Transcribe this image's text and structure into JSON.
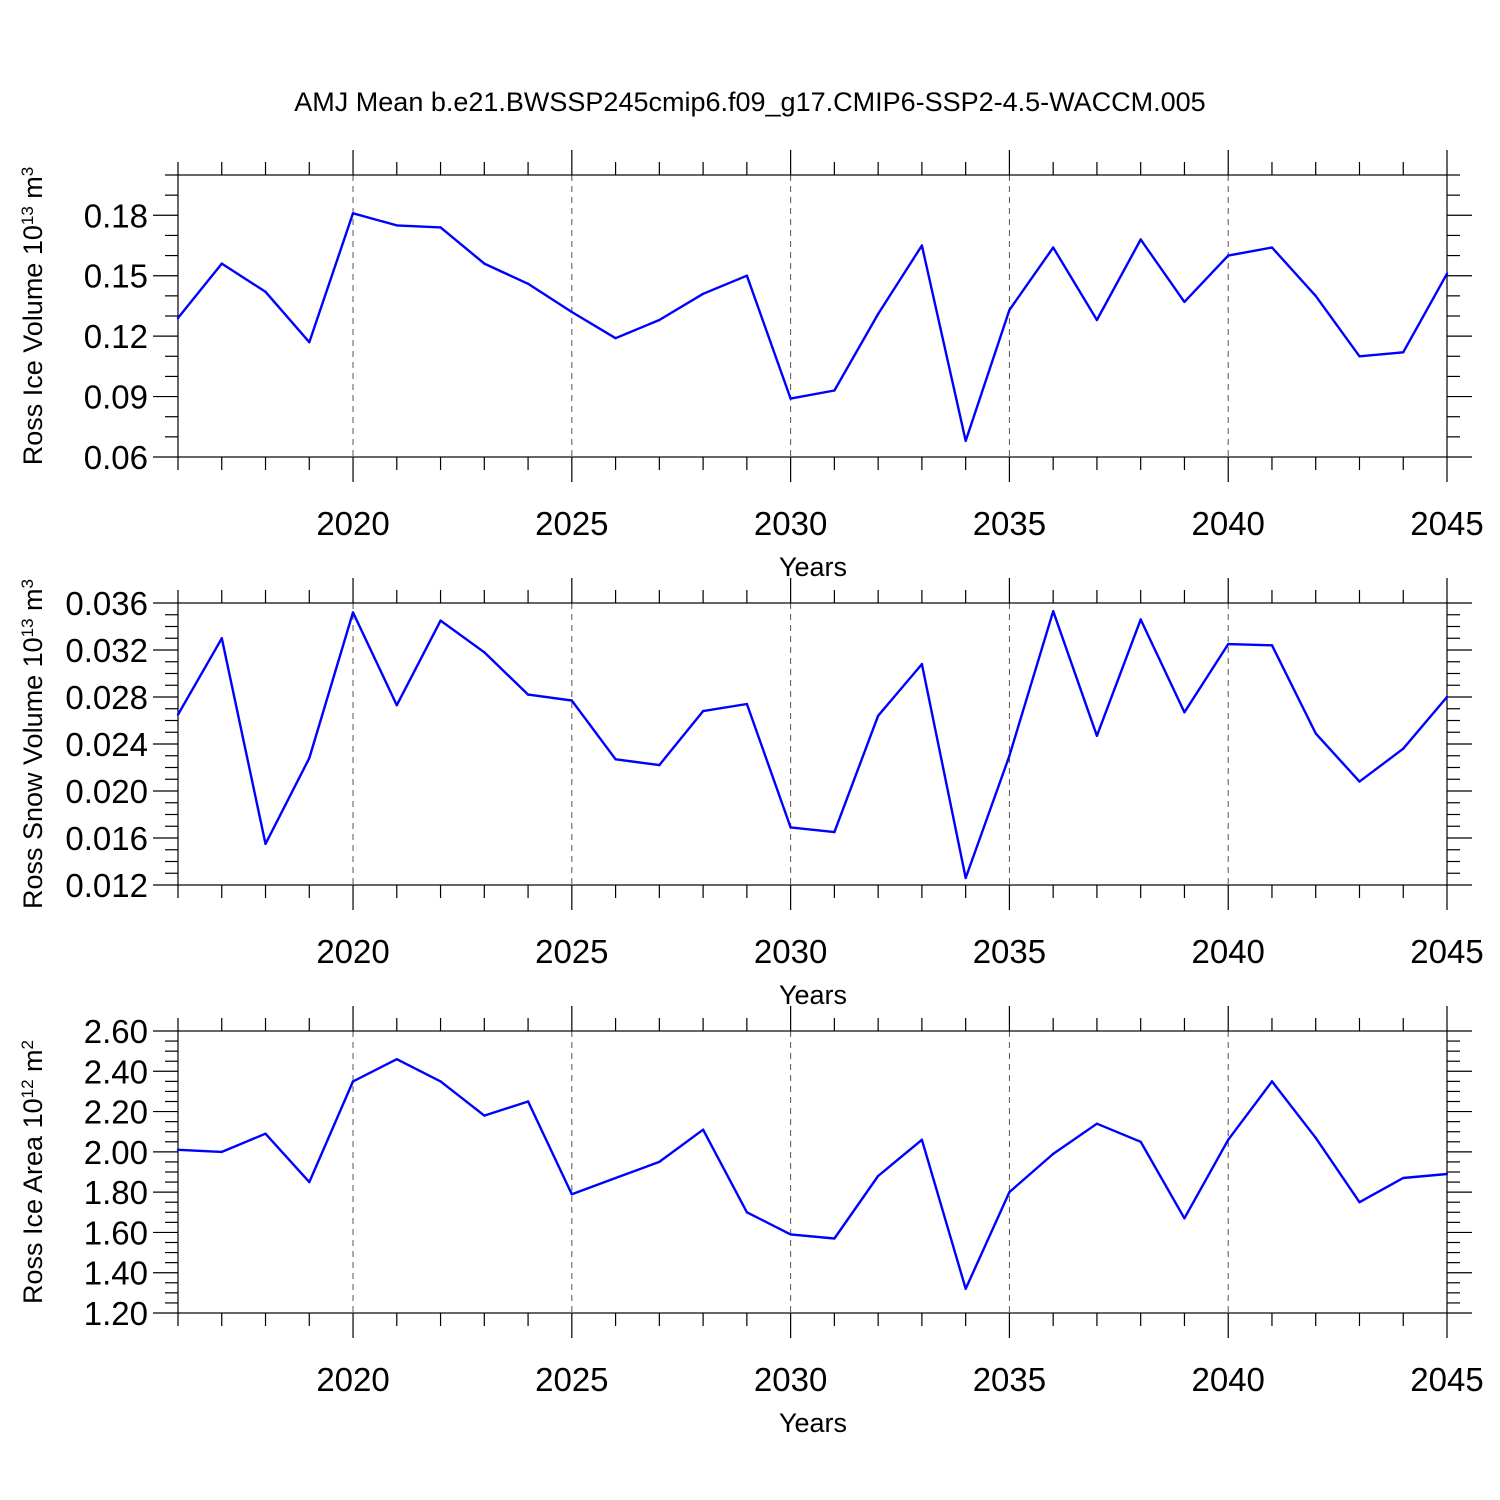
{
  "title": "AMJ Mean b.e21.BWSSP245cmip6.f09_g17.CMIP6-SSP2-4.5-WACCM.005",
  "colors": {
    "series": "#0000ff",
    "grid": "#555555",
    "axis": "#000000"
  },
  "chart_data": [
    {
      "type": "line",
      "ylabel": "Ross Ice Volume 10",
      "ylabel_exp": "13",
      "ylabel_unit": " m",
      "ylabel_unit_exp": "3",
      "xlabel": "Years",
      "xlim": [
        2016,
        2045
      ],
      "ylim": [
        0.06,
        0.2
      ],
      "yticks": [
        0.06,
        0.09,
        0.12,
        0.15,
        0.18
      ],
      "ytick_labels": [
        "0.06",
        "0.09",
        "0.12",
        "0.15",
        "0.18"
      ],
      "yminor_step": 0.01,
      "xticks": [
        2020,
        2025,
        2030,
        2035,
        2040,
        2045
      ],
      "xtick_labels": [
        "2020",
        "2025",
        "2030",
        "2035",
        "2040",
        "2045"
      ],
      "grid_x": true,
      "x": [
        2016,
        2017,
        2018,
        2019,
        2020,
        2021,
        2022,
        2023,
        2024,
        2025,
        2026,
        2027,
        2028,
        2029,
        2030,
        2031,
        2032,
        2033,
        2034,
        2035,
        2036,
        2037,
        2038,
        2039,
        2040,
        2041,
        2042,
        2043,
        2044,
        2045
      ],
      "values": [
        0.129,
        0.156,
        0.142,
        0.117,
        0.181,
        0.175,
        0.174,
        0.156,
        0.146,
        0.132,
        0.119,
        0.128,
        0.141,
        0.15,
        0.089,
        0.093,
        0.131,
        0.165,
        0.068,
        0.133,
        0.164,
        0.128,
        0.168,
        0.137,
        0.16,
        0.164,
        0.14,
        0.11,
        0.112,
        0.151
      ]
    },
    {
      "type": "line",
      "ylabel": "Ross Snow Volume 10",
      "ylabel_exp": "13",
      "ylabel_unit": " m",
      "ylabel_unit_exp": "3",
      "xlabel": "Years",
      "xlim": [
        2016,
        2045
      ],
      "ylim": [
        0.012,
        0.036
      ],
      "yticks": [
        0.012,
        0.016,
        0.02,
        0.024,
        0.028,
        0.032,
        0.036
      ],
      "ytick_labels": [
        "0.012",
        "0.016",
        "0.020",
        "0.024",
        "0.028",
        "0.032",
        "0.036"
      ],
      "yminor_step": 0.001,
      "xticks": [
        2020,
        2025,
        2030,
        2035,
        2040,
        2045
      ],
      "xtick_labels": [
        "2020",
        "2025",
        "2030",
        "2035",
        "2040",
        "2045"
      ],
      "grid_x": true,
      "x": [
        2016,
        2017,
        2018,
        2019,
        2020,
        2021,
        2022,
        2023,
        2024,
        2025,
        2026,
        2027,
        2028,
        2029,
        2030,
        2031,
        2032,
        2033,
        2034,
        2035,
        2036,
        2037,
        2038,
        2039,
        2040,
        2041,
        2042,
        2043,
        2044,
        2045
      ],
      "values": [
        0.0265,
        0.033,
        0.0155,
        0.0228,
        0.0352,
        0.0273,
        0.0345,
        0.0318,
        0.0282,
        0.0277,
        0.0227,
        0.0222,
        0.0268,
        0.0274,
        0.0169,
        0.0165,
        0.0264,
        0.0308,
        0.0126,
        0.023,
        0.0353,
        0.0247,
        0.0346,
        0.0267,
        0.0325,
        0.0324,
        0.0249,
        0.0208,
        0.0236,
        0.028
      ]
    },
    {
      "type": "line",
      "ylabel": "Ross Ice Area 10",
      "ylabel_exp": "12",
      "ylabel_unit": " m",
      "ylabel_unit_exp": "2",
      "xlabel": "Years",
      "xlim": [
        2016,
        2045
      ],
      "ylim": [
        1.2,
        2.6
      ],
      "yticks": [
        1.2,
        1.4,
        1.6,
        1.8,
        2.0,
        2.2,
        2.4,
        2.6
      ],
      "ytick_labels": [
        "1.20",
        "1.40",
        "1.60",
        "1.80",
        "2.00",
        "2.20",
        "2.40",
        "2.60"
      ],
      "yminor_step": 0.05,
      "xticks": [
        2020,
        2025,
        2030,
        2035,
        2040,
        2045
      ],
      "xtick_labels": [
        "2020",
        "2025",
        "2030",
        "2035",
        "2040",
        "2045"
      ],
      "grid_x": true,
      "x": [
        2016,
        2017,
        2018,
        2019,
        2020,
        2021,
        2022,
        2023,
        2024,
        2025,
        2026,
        2027,
        2028,
        2029,
        2030,
        2031,
        2032,
        2033,
        2034,
        2035,
        2036,
        2037,
        2038,
        2039,
        2040,
        2041,
        2042,
        2043,
        2044,
        2045
      ],
      "values": [
        2.01,
        2.0,
        2.09,
        1.85,
        2.35,
        2.46,
        2.35,
        2.18,
        2.25,
        1.79,
        1.87,
        1.95,
        2.11,
        1.7,
        1.59,
        1.57,
        1.88,
        2.06,
        1.32,
        1.8,
        1.99,
        2.14,
        2.05,
        1.67,
        2.06,
        2.35,
        2.07,
        1.75,
        1.87,
        1.89
      ]
    }
  ]
}
